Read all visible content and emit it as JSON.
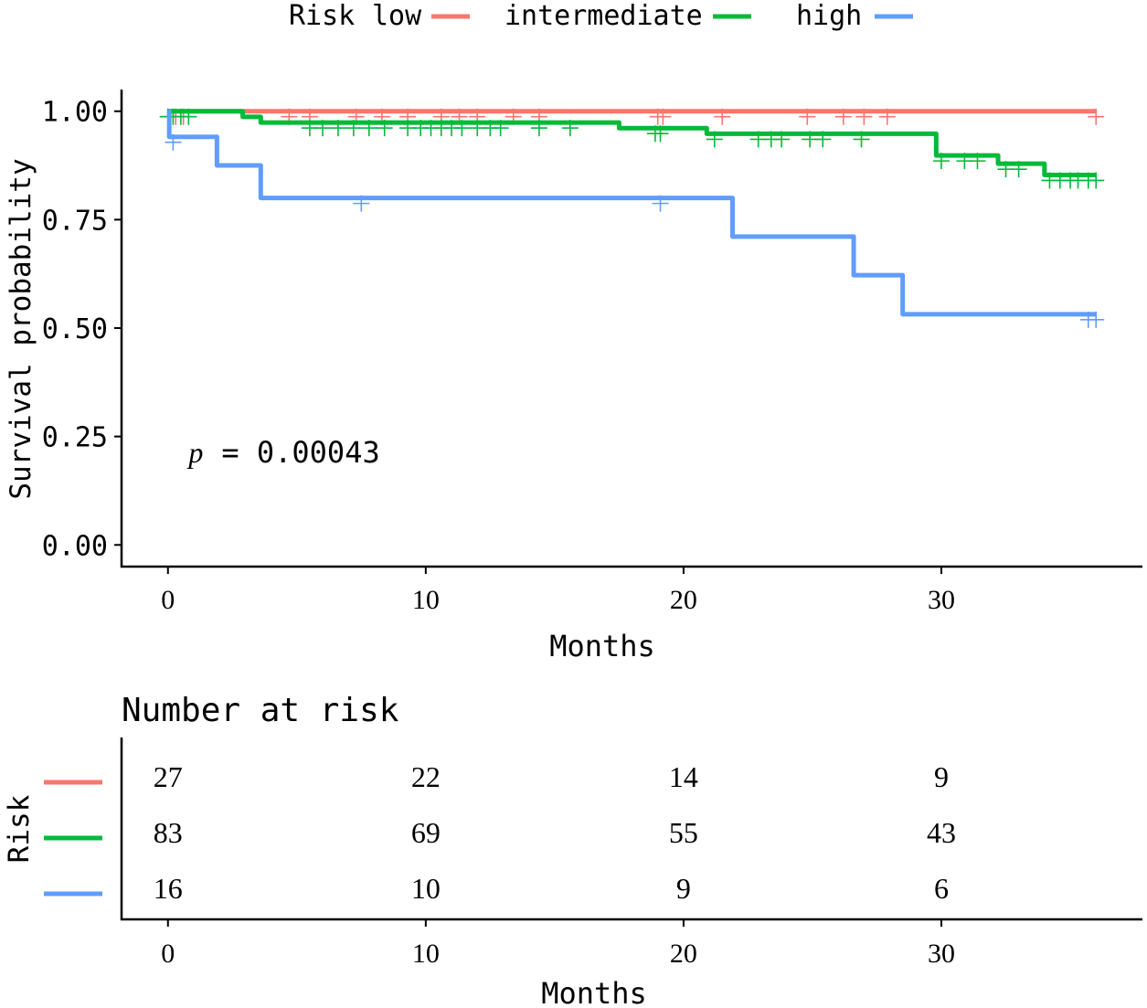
{
  "chart_data": [
    {
      "type": "line",
      "subtype": "kaplan-meier",
      "title": "",
      "xlabel": "Months",
      "ylabel": "Survival probability",
      "xlim": [
        -1.8,
        37.8
      ],
      "ylim": [
        -0.05,
        1.05
      ],
      "xticks": [
        0,
        10,
        20,
        30
      ],
      "yticks": [
        0.0,
        0.25,
        0.5,
        0.75,
        1.0
      ],
      "ytick_labels": [
        "0.00",
        "0.25",
        "0.50",
        "0.75",
        "1.00"
      ],
      "grid": false,
      "legend": {
        "position": "top",
        "title": "Risk",
        "entries": [
          "low",
          "intermediate",
          "high"
        ]
      },
      "annotation": {
        "p_label": "p",
        "p_value": "= 0.00043",
        "x": 0.8,
        "y": 0.19
      },
      "series": [
        {
          "name": "low",
          "color": "#F8766D",
          "steps": [
            [
              0,
              1.0
            ],
            [
              36,
              1.0
            ]
          ],
          "censors": [
            0,
            0.3,
            0.6,
            4.7,
            5.5,
            7.3,
            8.3,
            9.3,
            10.6,
            11.3,
            12.0,
            13.4,
            14.4,
            19.0,
            19.2,
            21.5,
            24.8,
            26.2,
            27.0,
            27.9,
            36
          ]
        },
        {
          "name": "intermediate",
          "color": "#00BA38",
          "steps": [
            [
              0,
              1.0
            ],
            [
              2.9,
              0.987
            ],
            [
              3.6,
              0.974
            ],
            [
              17.5,
              0.961
            ],
            [
              20.9,
              0.948
            ],
            [
              29.8,
              0.898
            ],
            [
              32.2,
              0.879
            ],
            [
              34.0,
              0.853
            ],
            [
              36,
              0.853
            ]
          ],
          "censors": [
            0,
            0.2,
            0.5,
            0.8,
            5.5,
            6.0,
            6.6,
            7.2,
            7.8,
            8.4,
            9.3,
            9.8,
            10.2,
            10.6,
            11.0,
            11.4,
            12.0,
            12.5,
            12.9,
            14.4,
            15.6,
            18.9,
            19.1,
            21.2,
            22.9,
            23.4,
            23.8,
            24.9,
            25.4,
            26.9,
            30.0,
            30.9,
            31.4,
            32.5,
            33.0,
            34.2,
            34.6,
            35.0,
            35.3,
            35.7,
            36
          ]
        },
        {
          "name": "high",
          "color": "#619CFF",
          "steps": [
            [
              0,
              1.0
            ],
            [
              0.05,
              0.941
            ],
            [
              1.9,
              0.875
            ],
            [
              3.6,
              0.8
            ],
            [
              21.9,
              0.711
            ],
            [
              26.6,
              0.622
            ],
            [
              28.5,
              0.532
            ],
            [
              36,
              0.532
            ]
          ],
          "censors": [
            0.2,
            7.5,
            19.1,
            35.7,
            36
          ]
        }
      ]
    },
    {
      "type": "table",
      "title": "Number at risk",
      "ylabel": "Risk",
      "xlabel": "Months",
      "xticks": [
        0,
        10,
        20,
        30
      ],
      "rows": [
        {
          "name": "low",
          "color": "#F8766D",
          "values": [
            27,
            22,
            14,
            9
          ]
        },
        {
          "name": "intermediate",
          "color": "#00BA38",
          "values": [
            83,
            69,
            55,
            43
          ]
        },
        {
          "name": "high",
          "color": "#619CFF",
          "values": [
            16,
            10,
            9,
            6
          ]
        }
      ]
    }
  ]
}
